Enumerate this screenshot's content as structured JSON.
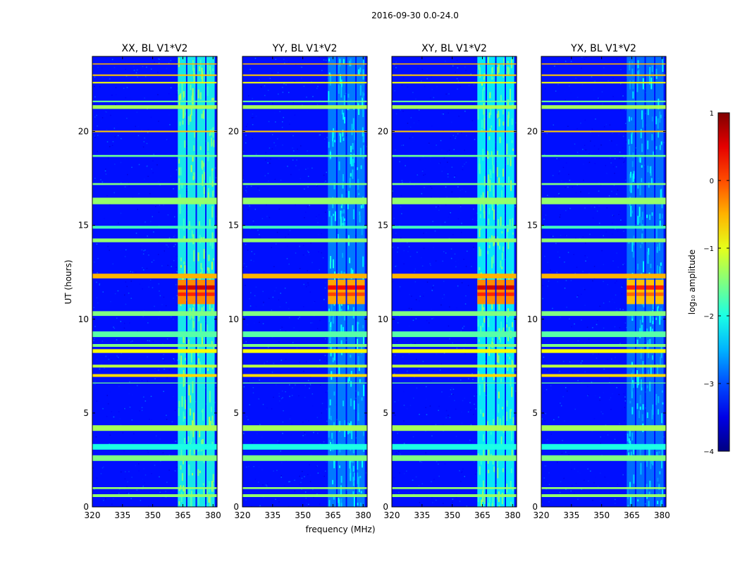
{
  "chart_data": {
    "type": "heatmap",
    "suptitle": "2016-09-30 0.0-24.0",
    "xlabel": "frequency (MHz)",
    "ylabel": "UT (hours)",
    "xlim": [
      320,
      382
    ],
    "ylim": [
      0,
      24
    ],
    "xticks": [
      320,
      335,
      350,
      365,
      380
    ],
    "yticks": [
      0,
      5,
      10,
      15,
      20
    ],
    "panels": [
      {
        "title": "XX, BL V1*V2",
        "rfi_level": 1.0,
        "burst_level": 1.0
      },
      {
        "title": "YY, BL V1*V2",
        "rfi_level": 0.55,
        "burst_level": 0.85
      },
      {
        "title": "XY, BL V1*V2",
        "rfi_level": 0.95,
        "burst_level": 1.0
      },
      {
        "title": "YX, BL V1*V2",
        "rfi_level": 0.5,
        "burst_level": 0.7
      }
    ],
    "colorbar": {
      "label": "log₁₀ amplitude",
      "vmin": -4,
      "vmax": 1,
      "ticks": [
        1,
        0,
        -1,
        -2,
        -3,
        -4
      ],
      "tick_labels": [
        "1",
        "0",
        "−1",
        "−2",
        "−3",
        "−4"
      ],
      "colormap": "jet"
    },
    "background_level": -3.3,
    "rfi_band_mhz": [
      362.5,
      381.5
    ],
    "burst_ut_hours": [
      10.8,
      12.1
    ],
    "flagged_ut_hours": [
      0.6,
      1.0,
      2.6,
      3.2,
      4.2,
      6.6,
      7.0,
      7.5,
      8.3,
      8.6,
      9.2,
      10.3,
      12.3,
      14.2,
      14.9,
      16.3,
      17.2,
      18.7,
      20.0,
      21.3,
      21.6,
      22.6,
      23.0,
      23.6
    ],
    "flagged_levels": [
      -1.4,
      -1.4,
      -1.5,
      -2.0,
      -1.3,
      -1.6,
      -0.7,
      -1.2,
      -0.9,
      -1.5,
      -1.7,
      -1.5,
      -0.5,
      -1.4,
      -1.8,
      -1.4,
      -1.5,
      -1.6,
      -0.6,
      -1.3,
      -1.6,
      -0.9,
      -0.6,
      -0.5
    ],
    "flagged_widths_h": [
      0.15,
      0.1,
      0.3,
      0.3,
      0.3,
      0.05,
      0.15,
      0.15,
      0.2,
      0.15,
      0.3,
      0.25,
      0.25,
      0.2,
      0.15,
      0.35,
      0.1,
      0.1,
      0.08,
      0.2,
      0.08,
      0.08,
      0.08,
      0.06
    ]
  }
}
